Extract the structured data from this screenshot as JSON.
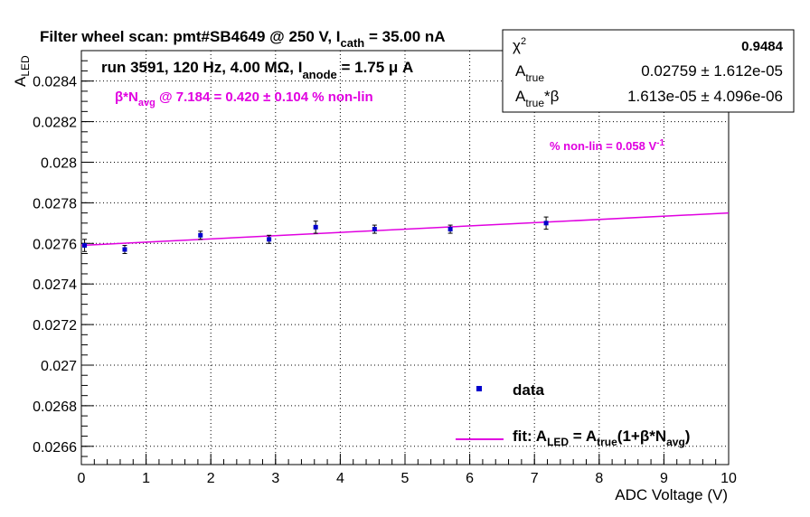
{
  "chart_data": {
    "type": "scatter",
    "title_main": "Filter wheel scan: pmt#SB4649 @   250 V, I",
    "title_sub": "cath",
    "title_tail": " = 35.00 nA",
    "xlabel": "ADC Voltage (V)",
    "ylabel_main": "A",
    "ylabel_sub": "LED",
    "xlim": [
      0,
      10
    ],
    "ylim": [
      0.02651,
      0.02855
    ],
    "x_ticks": [
      "0",
      "1",
      "2",
      "3",
      "4",
      "5",
      "6",
      "7",
      "8",
      "9",
      "10"
    ],
    "y_ticks": [
      "0.0266",
      "0.0268",
      "0.027",
      "0.0272",
      "0.0274",
      "0.0276",
      "0.0278",
      "0.028",
      "0.0282",
      "0.0284"
    ],
    "grid": true,
    "series": [
      {
        "name": "data",
        "color": "#0000cc",
        "x": [
          0.05,
          0.67,
          1.84,
          2.9,
          3.62,
          4.53,
          5.7,
          7.18
        ],
        "y": [
          0.02759,
          0.02757,
          0.02764,
          0.02762,
          0.02768,
          0.02767,
          0.02767,
          0.0277
        ],
        "err": [
          3e-05,
          2e-05,
          2e-05,
          2e-05,
          3e-05,
          2e-05,
          2e-05,
          3e-05
        ]
      }
    ],
    "fit": {
      "label": "fit",
      "color": "#e000e0",
      "x": [
        0,
        10
      ],
      "y": [
        0.02759,
        0.02775
      ]
    },
    "run_info": {
      "main": "run 3591, 120 Hz, 4.00 MΩ, I",
      "sub": "anode",
      "tail": " = 1.75 μ A"
    },
    "beta_annotation": {
      "pre": "β*N",
      "sub": "avg",
      "tail": " @ 7.184 = 0.420 ± 0.104 % non-lin"
    },
    "nonlin_annotation": {
      "main": "% non-lin = 0.058 V",
      "sup": "-1"
    },
    "stats_box": {
      "chi2_label": "χ",
      "chi2_sup": "2",
      "chi2_value": "0.9484",
      "atrue_label": "A",
      "atrue_sub": "true",
      "atrue_value": "0.02759 ± 1.612e-05",
      "atrue_beta_label": "A",
      "atrue_beta_sub": "true",
      "atrue_beta_tail": "*β",
      "atrue_beta_value": "1.613e-05 ± 4.096e-06"
    },
    "legend": {
      "data_label": "data",
      "fit_main": "fit: A",
      "fit_sub1": "LED",
      "fit_mid": " = A",
      "fit_sub2": "true",
      "fit_mid2": "(1+β*N",
      "fit_sub3": "avg",
      "fit_end": ")"
    }
  }
}
